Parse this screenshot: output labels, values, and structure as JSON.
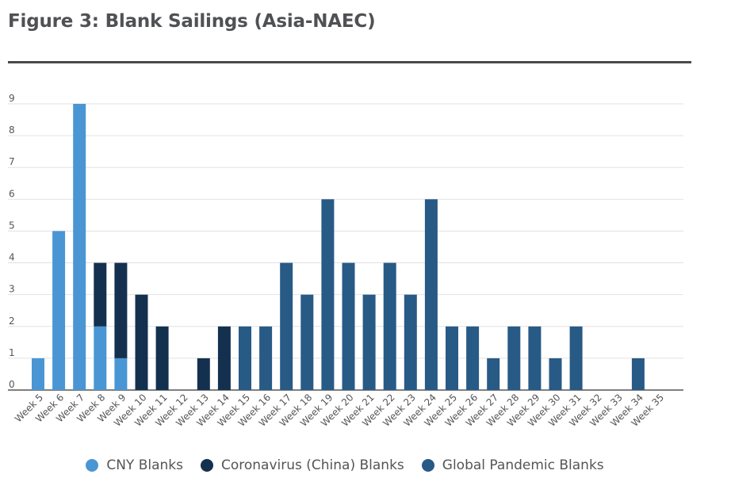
{
  "title": "Figure 3: Blank Sailings (Asia-NAEC)",
  "chart_data": {
    "type": "bar",
    "stacked": true,
    "categories": [
      "Week 5",
      "Week 6",
      "Week 7",
      "Week 8",
      "Week 9",
      "Week 10",
      "Week 11",
      "Week 12",
      "Week 13",
      "Week 14",
      "Week 15",
      "Week 16",
      "Week 17",
      "Week 18",
      "Week 19",
      "Week 20",
      "Week 21",
      "Week 22",
      "Week 23",
      "Week 24",
      "Week 25",
      "Week 26",
      "Week 27",
      "Week 28",
      "Week 29",
      "Week 30",
      "Week 31",
      "Week 32",
      "Week 33",
      "Week 34",
      "Week 35"
    ],
    "series": [
      {
        "name": "CNY Blanks",
        "color": "#4a96d4",
        "values": [
          1,
          5,
          9,
          2,
          1,
          0,
          0,
          0,
          0,
          0,
          0,
          0,
          0,
          0,
          0,
          0,
          0,
          0,
          0,
          0,
          0,
          0,
          0,
          0,
          0,
          0,
          0,
          0,
          0,
          0,
          0
        ]
      },
      {
        "name": "Coronavirus (China) Blanks",
        "color": "#14304f",
        "values": [
          0,
          0,
          0,
          2,
          3,
          3,
          2,
          0,
          1,
          2,
          0,
          0,
          0,
          0,
          0,
          0,
          0,
          0,
          0,
          0,
          0,
          0,
          0,
          0,
          0,
          0,
          0,
          0,
          0,
          0,
          0
        ]
      },
      {
        "name": "Global Pandemic Blanks",
        "color": "#285a86",
        "values": [
          0,
          0,
          0,
          0,
          0,
          0,
          0,
          0,
          0,
          0,
          2,
          2,
          4,
          3,
          6,
          4,
          3,
          4,
          3,
          6,
          2,
          2,
          1,
          2,
          2,
          1,
          2,
          0,
          0,
          1,
          0
        ]
      }
    ],
    "ylim": [
      0,
      9
    ],
    "yticks": [
      0,
      1,
      2,
      3,
      4,
      5,
      6,
      7,
      8,
      9
    ],
    "xlabel": "",
    "ylabel": "",
    "legend_position": "bottom",
    "grid": true
  }
}
